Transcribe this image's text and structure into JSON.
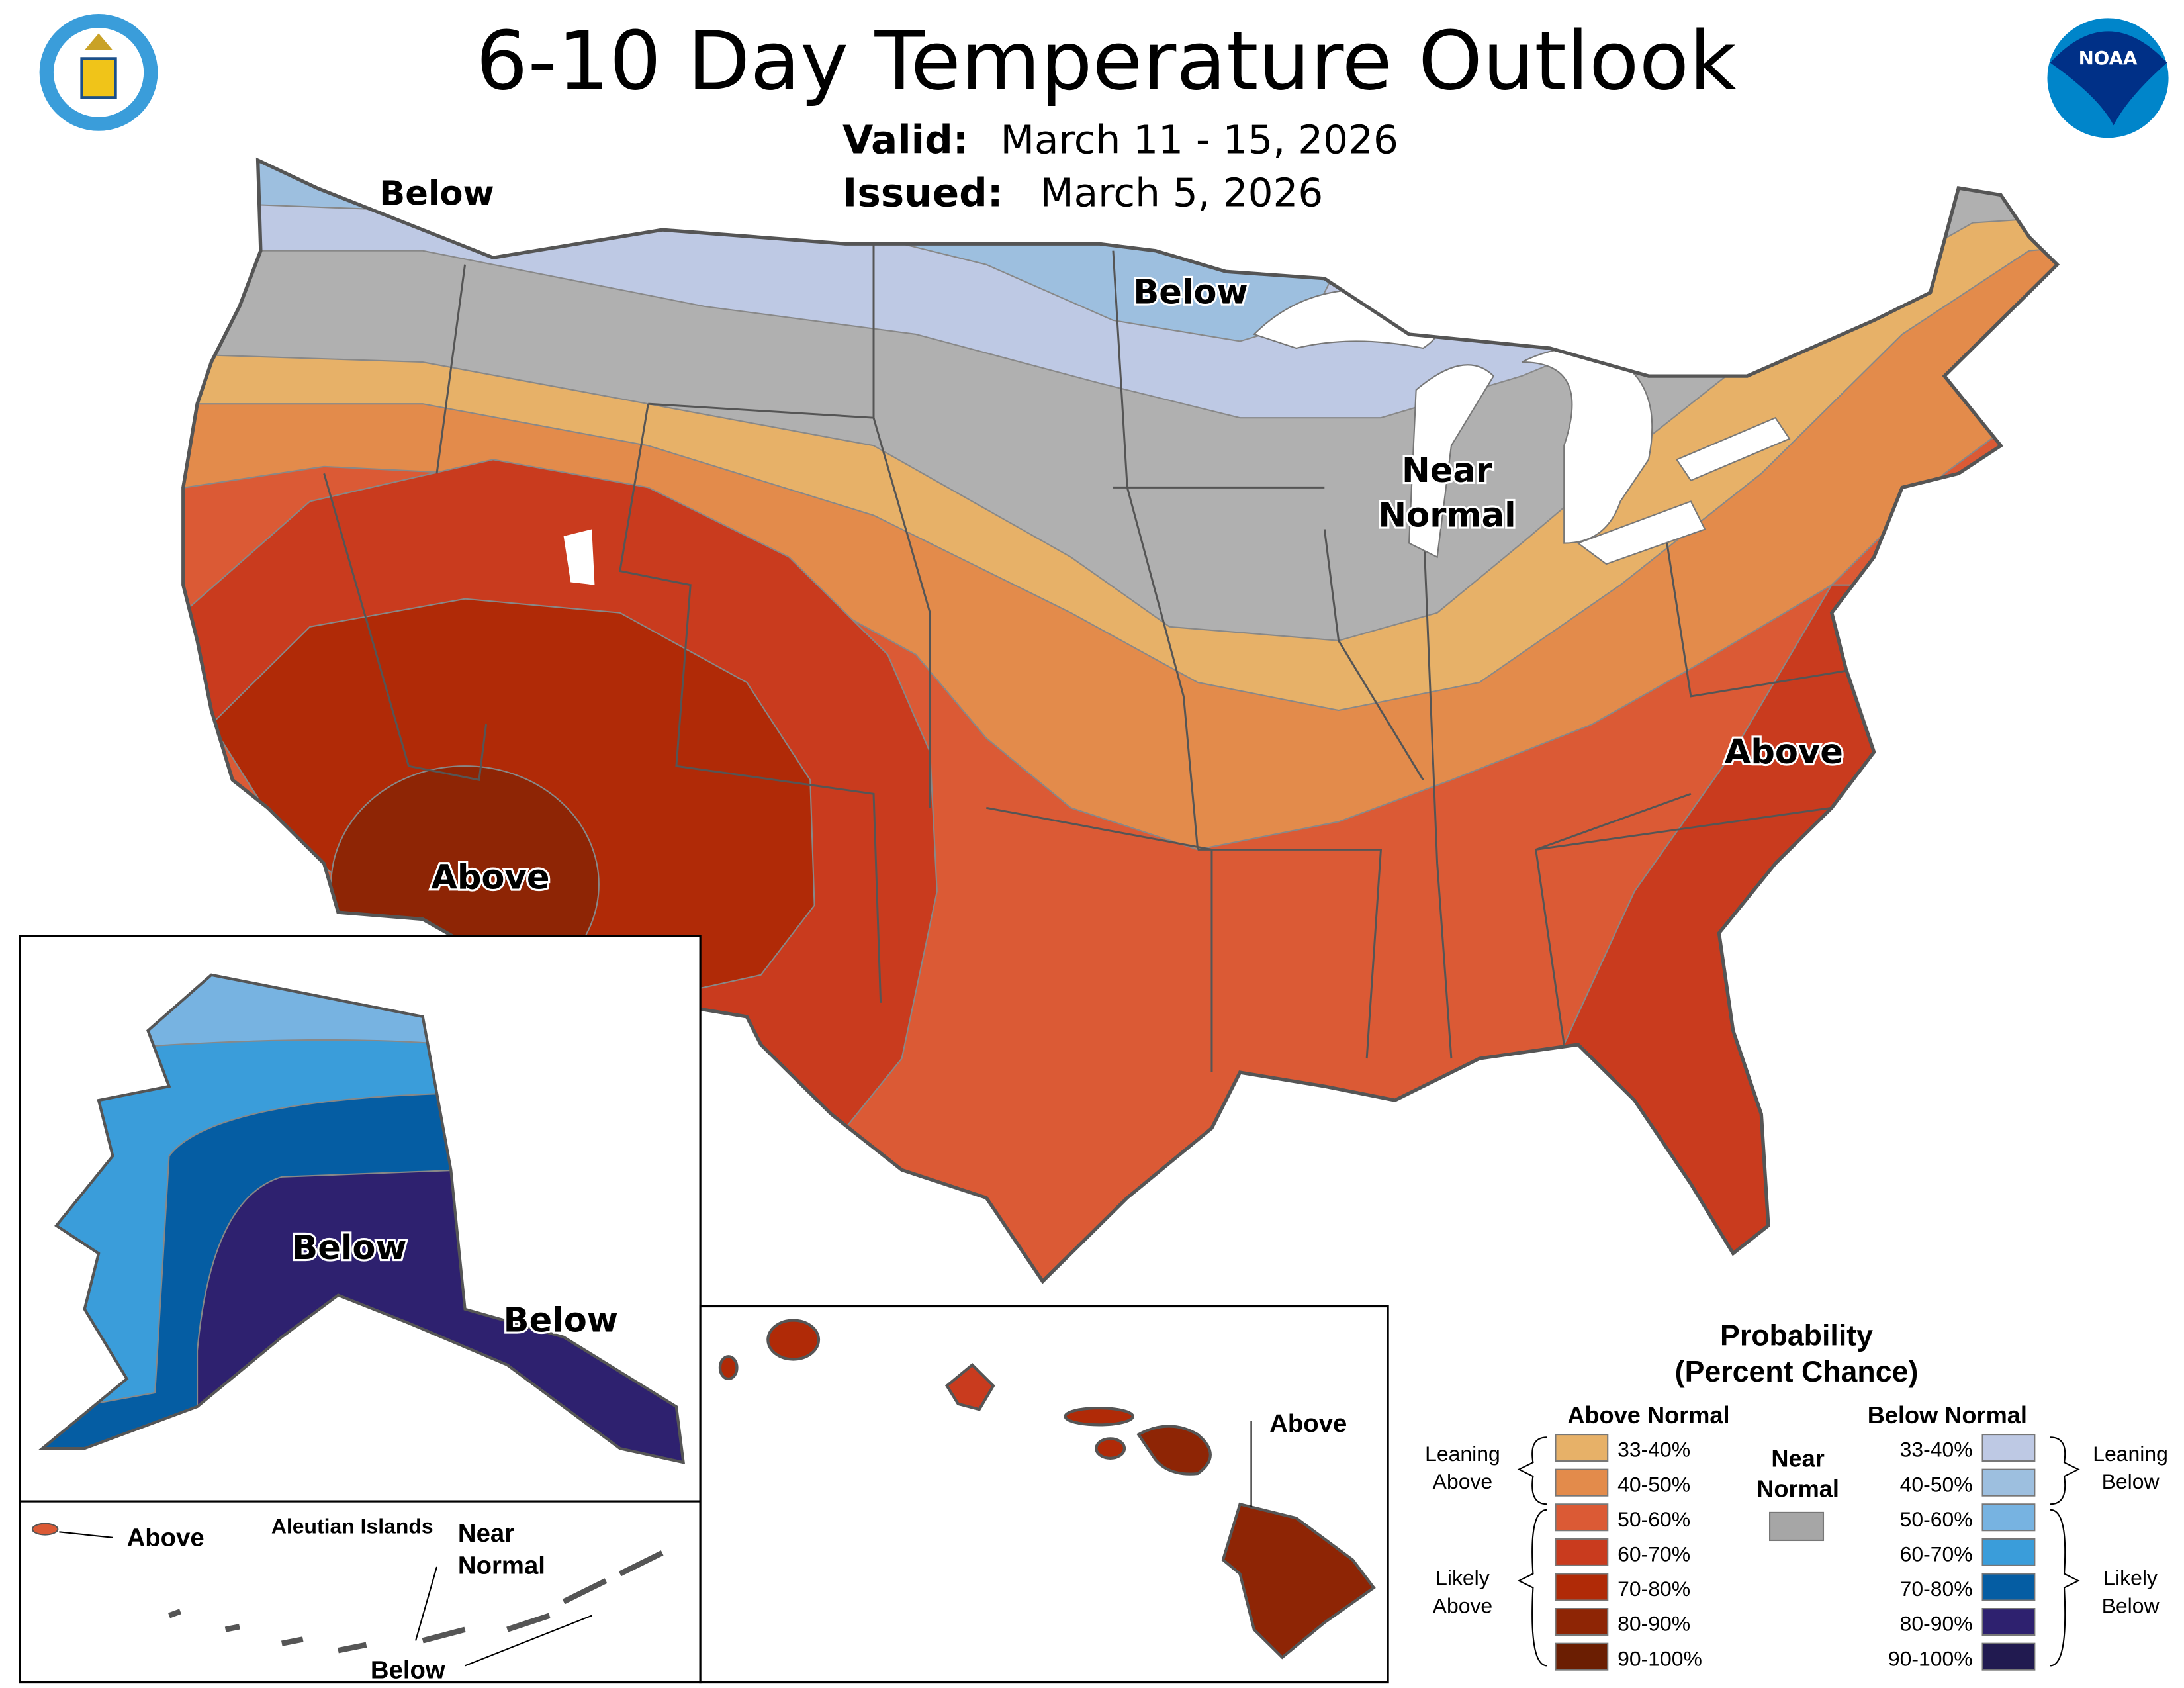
{
  "header": {
    "title": "6-10 Day Temperature Outlook",
    "valid_label": "Valid:",
    "valid_value": "March 11 - 15, 2026",
    "issued_label": "Issued:",
    "issued_value": "March 5, 2026",
    "left_logo": "Department of Commerce seal",
    "right_logo": "NOAA",
    "right_logo_text": "NOAA"
  },
  "map_labels": {
    "wa_below": "Below",
    "mn_below": "Below",
    "near_normal_1": "Near",
    "near_normal_2": "Normal",
    "southwest_above": "Above",
    "southeast_above": "Above",
    "alaska_below": "Below",
    "alaska_se_below": "Below",
    "aleutian_title": "Aleutian Islands",
    "aleutian_above": "Above",
    "aleutian_near_1": "Near",
    "aleutian_near_2": "Normal",
    "aleutian_below": "Below",
    "hawaii_above": "Above"
  },
  "legend": {
    "title_1": "Probability",
    "title_2": "(Percent Chance)",
    "above_header": "Above Normal",
    "below_header": "Below Normal",
    "near_1": "Near",
    "near_2": "Normal",
    "near_color": "#A6A6A6",
    "leaning_above_1": "Leaning",
    "leaning_above_2": "Above",
    "likely_above_1": "Likely",
    "likely_above_2": "Above",
    "leaning_below_1": "Leaning",
    "leaning_below_2": "Below",
    "likely_below_1": "Likely",
    "likely_below_2": "Below",
    "above": [
      {
        "label": "33-40%",
        "color": "#E7B168"
      },
      {
        "label": "40-50%",
        "color": "#E38B4B"
      },
      {
        "label": "50-60%",
        "color": "#DB5A35"
      },
      {
        "label": "60-70%",
        "color": "#C93B1E"
      },
      {
        "label": "70-80%",
        "color": "#B02A07"
      },
      {
        "label": "80-90%",
        "color": "#8E2505"
      },
      {
        "label": "90-100%",
        "color": "#6B1E02"
      }
    ],
    "below": [
      {
        "label": "33-40%",
        "color": "#BEC9E4"
      },
      {
        "label": "40-50%",
        "color": "#9DBFDF"
      },
      {
        "label": "50-60%",
        "color": "#77B3E1"
      },
      {
        "label": "60-70%",
        "color": "#3A9DDA"
      },
      {
        "label": "70-80%",
        "color": "#055DA3"
      },
      {
        "label": "80-90%",
        "color": "#2E216F"
      },
      {
        "label": "90-100%",
        "color": "#211A50"
      }
    ]
  }
}
